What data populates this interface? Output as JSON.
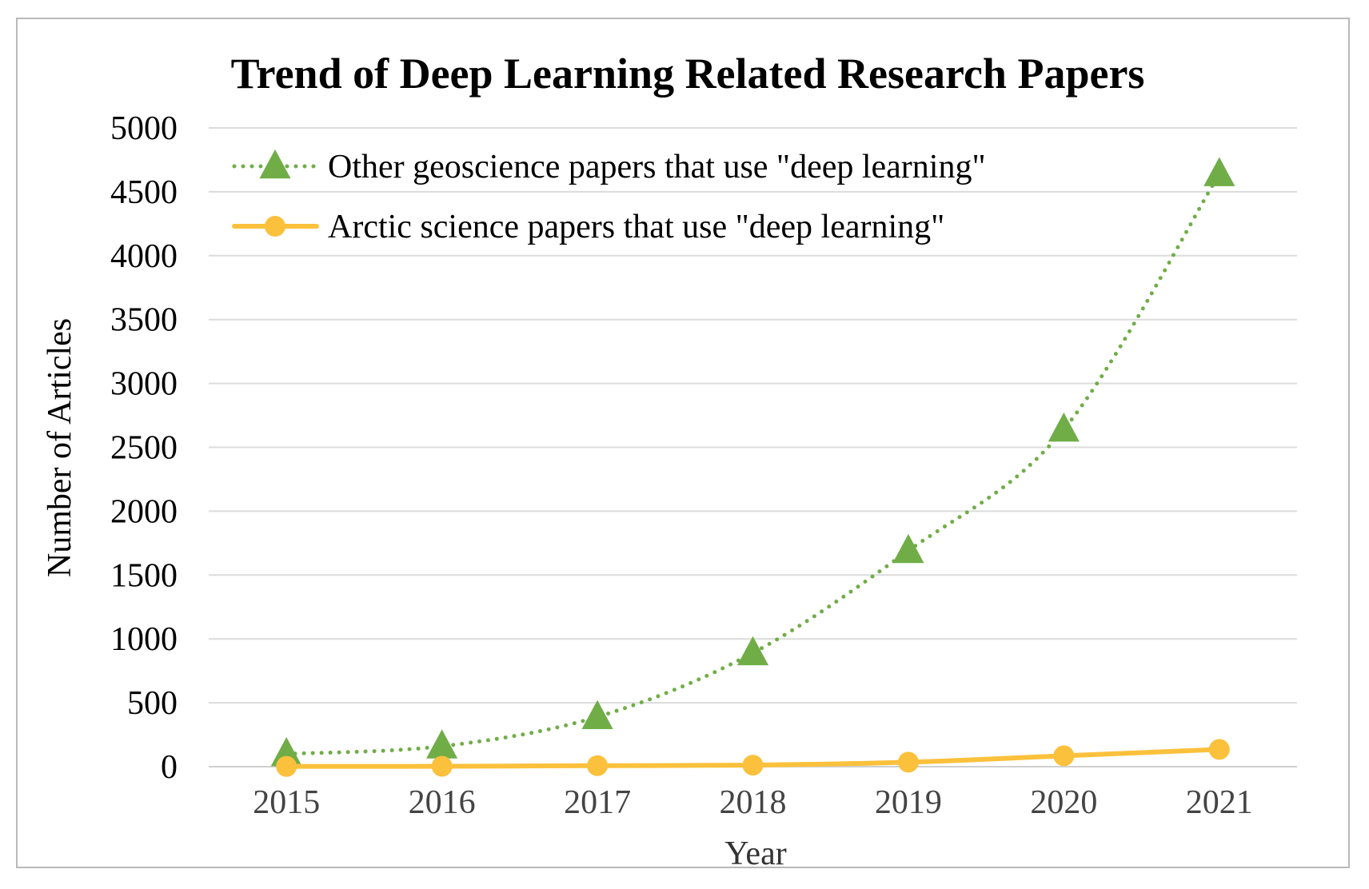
{
  "chart_data": {
    "type": "line",
    "title": "Trend of Deep Learning Related Research Papers",
    "xlabel": "Year",
    "ylabel": "Number of Articles",
    "categories": [
      "2015",
      "2016",
      "2017",
      "2018",
      "2019",
      "2020",
      "2021"
    ],
    "yticks": [
      "0",
      "500",
      "1000",
      "1500",
      "2000",
      "2500",
      "3000",
      "3500",
      "4000",
      "4500",
      "5000"
    ],
    "ylim": [
      0,
      5000
    ],
    "grid": true,
    "legend_position": "top-left",
    "series": [
      {
        "name": "Other geoscience papers that use \"deep learning\"",
        "values": [
          100,
          160,
          390,
          890,
          1690,
          2640,
          4640
        ],
        "color": "#70ad47",
        "line_style": "dotted",
        "marker": "triangle"
      },
      {
        "name": "Arctic science papers that use \"deep learning\"",
        "values": [
          2,
          3,
          8,
          12,
          35,
          85,
          135
        ],
        "color": "#fbc13c",
        "line_style": "solid",
        "marker": "circle"
      }
    ]
  }
}
